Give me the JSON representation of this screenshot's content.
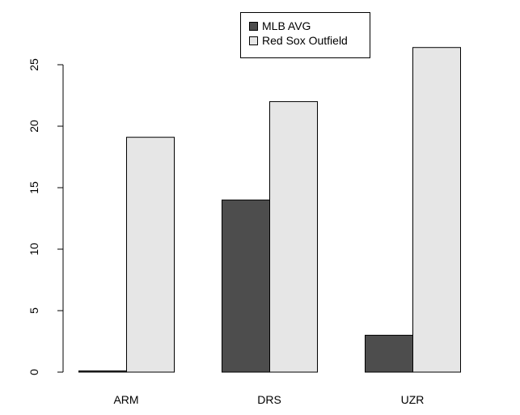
{
  "chart_data": {
    "type": "bar",
    "categories": [
      "ARM",
      "DRS",
      "UZR"
    ],
    "series": [
      {
        "name": "MLB AVG",
        "values": [
          0.1,
          14,
          3
        ],
        "color": "#4d4d4d"
      },
      {
        "name": "Red Sox Outfield",
        "values": [
          19.1,
          22,
          26.4
        ],
        "color": "#e6e6e6"
      }
    ],
    "yticks": [
      0,
      5,
      10,
      15,
      20,
      25
    ],
    "ylim": [
      0,
      26.4
    ],
    "title": "",
    "xlabel": "",
    "ylabel": "",
    "grid": false,
    "legend_position": "top-center",
    "bar_border_color": "#000000"
  }
}
